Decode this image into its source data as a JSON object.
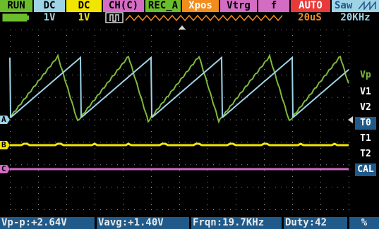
{
  "top_row": {
    "run": "RUN",
    "ch_a_coupling": "DC",
    "ch_b_coupling": "DC",
    "ch_c": "CH(C)",
    "rec": "REC_A",
    "xpos": "Xpos",
    "vtrg": "Vtrg",
    "trig_edge": "f",
    "mode": "AUTO",
    "wave": "Saw"
  },
  "second_row": {
    "ch_a_scale": "1V",
    "ch_b_scale": "1V",
    "timebase": "20uS",
    "frequency": "20KHz"
  },
  "right_menu": [
    "Vp",
    "V1",
    "V2",
    "T0",
    "T1",
    "T2",
    "CAL"
  ],
  "right_menu_selected": [
    "T0",
    "CAL"
  ],
  "channel_markers": {
    "a": "A",
    "b": "B",
    "c": "C"
  },
  "measurements": {
    "vpp": "Vp-p:+2.64V",
    "vavg": "Vavg:+1.40V",
    "freq": "Frqn:19.7KHz",
    "duty": "Duty:42",
    "unit": "%"
  },
  "colors": {
    "ch_a_trace": "#7fb93c",
    "ch_b_trace": "#f2e500",
    "ch_c_trace": "#d36cc2",
    "ref_trace": "#9fd3e6",
    "accent_orange": "#f28c1f",
    "status_green": "#6cbd2b"
  }
}
